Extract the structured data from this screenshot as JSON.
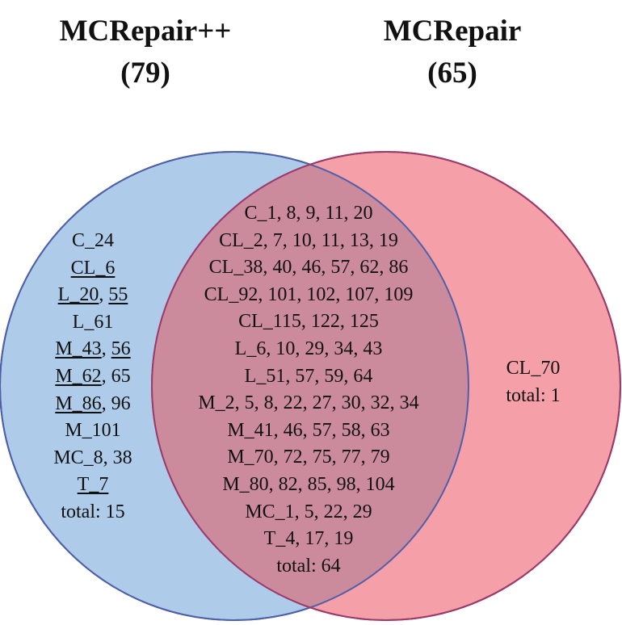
{
  "colors": {
    "left_fill": "#aecbe9",
    "left_stroke": "#4f5fa8",
    "right_fill": "#f5a0a8",
    "right_stroke": "#9b3b6b",
    "overlap_fill": "#cc8b9c"
  },
  "sets": {
    "left": {
      "name": "MCRepair++",
      "count": "(79)"
    },
    "right": {
      "name": "MCRepair",
      "count": "(65)"
    }
  },
  "regions": {
    "left_only": {
      "lines": [
        [
          {
            "t": "C_24"
          }
        ],
        [
          {
            "t": "CL_6",
            "u": true
          }
        ],
        [
          {
            "t": "L_20",
            "u": true
          },
          {
            "t": "55",
            "u": true
          }
        ],
        [
          {
            "t": "L_61"
          }
        ],
        [
          {
            "t": "M_43",
            "u": true
          },
          {
            "t": "56",
            "u": true
          }
        ],
        [
          {
            "t": "M_62",
            "u": true
          },
          {
            "t": "65"
          }
        ],
        [
          {
            "t": "M_86",
            "u": true
          },
          {
            "t": "96"
          }
        ],
        [
          {
            "t": "M_101"
          }
        ],
        [
          {
            "t": "MC_8"
          },
          {
            "t": "38"
          }
        ],
        [
          {
            "t": "T_7",
            "u": true
          }
        ],
        [
          {
            "t": "total: 15"
          }
        ]
      ]
    },
    "both": {
      "lines": [
        [
          {
            "t": "C_1, 8, 9, 11, 20"
          }
        ],
        [
          {
            "t": "CL_2, 7, 10, 11, 13, 19"
          }
        ],
        [
          {
            "t": "CL_38, 40, 46, 57, 62, 86"
          }
        ],
        [
          {
            "t": "CL_92, 101, 102, 107, 109"
          }
        ],
        [
          {
            "t": "CL_115, 122, 125"
          }
        ],
        [
          {
            "t": "L_6, 10, 29, 34, 43"
          }
        ],
        [
          {
            "t": "L_51, 57, 59, 64"
          }
        ],
        [
          {
            "t": "M_2, 5, 8, 22, 27, 30, 32, 34"
          }
        ],
        [
          {
            "t": "M_41, 46, 57, 58, 63"
          }
        ],
        [
          {
            "t": "M_70, 72, 75, 77, 79"
          }
        ],
        [
          {
            "t": "M_80, 82, 85, 98, 104"
          }
        ],
        [
          {
            "t": "MC_1, 5, 22, 29"
          }
        ],
        [
          {
            "t": "T_4, 17, 19"
          }
        ],
        [
          {
            "t": "total: 64"
          }
        ]
      ]
    },
    "right_only": {
      "lines": [
        [
          {
            "t": "CL_70"
          }
        ],
        [
          {
            "t": "total: 1"
          }
        ]
      ]
    }
  }
}
